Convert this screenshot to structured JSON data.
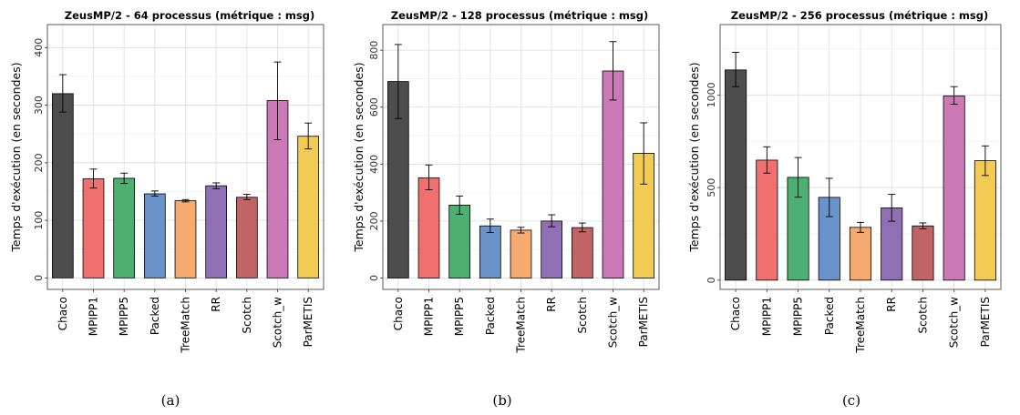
{
  "chart_data": [
    {
      "type": "bar",
      "title": "ZeusMP/2 - 64 processus (métrique : msg)",
      "ylabel": "Temps d'exécution (en secondes)",
      "xlabel": "",
      "subcaption": "(a)",
      "categories": [
        "Chaco",
        "MPIPP1",
        "MPIPP5",
        "Packed",
        "TreeMatch",
        "RR",
        "Scotch",
        "Scotch_w",
        "ParMETIS"
      ],
      "values": [
        320,
        172,
        173,
        146,
        134,
        160,
        140,
        308,
        246
      ],
      "error_low": [
        288,
        156,
        164,
        142,
        132,
        155,
        136,
        240,
        224
      ],
      "error_high": [
        353,
        189,
        182,
        151,
        136,
        165,
        145,
        375,
        269
      ],
      "ylim": [
        -20,
        440
      ],
      "yticks": [
        0,
        100,
        200,
        300,
        400
      ],
      "grid": true
    },
    {
      "type": "bar",
      "title": "ZeusMP/2 - 128 processus (métrique : msg)",
      "ylabel": "Temps d'exécution (en secondes)",
      "xlabel": "",
      "subcaption": "(b)",
      "categories": [
        "Chaco",
        "MPIPP1",
        "MPIPP5",
        "Packed",
        "TreeMatch",
        "RR",
        "Scotch",
        "Scotch_w",
        "ParMETIS"
      ],
      "values": [
        690,
        352,
        256,
        183,
        168,
        200,
        177,
        727,
        438
      ],
      "error_low": [
        560,
        310,
        224,
        160,
        158,
        180,
        162,
        625,
        330
      ],
      "error_high": [
        820,
        397,
        288,
        207,
        178,
        222,
        193,
        830,
        545
      ],
      "ylim": [
        -40,
        890
      ],
      "yticks": [
        0,
        200,
        400,
        600,
        800
      ],
      "grid": true
    },
    {
      "type": "bar",
      "title": "ZeusMP/2 - 256 processus (métrique : msg)",
      "ylabel": "Temps d'exécution (en secondes)",
      "xlabel": "",
      "subcaption": "(c)",
      "categories": [
        "Chaco",
        "MPIPP1",
        "MPIPP5",
        "Packed",
        "TreeMatch",
        "RR",
        "Scotch",
        "Scotch_w",
        "ParMETIS"
      ],
      "values": [
        1135,
        648,
        555,
        447,
        285,
        390,
        293,
        995,
        645
      ],
      "error_low": [
        1045,
        578,
        448,
        343,
        258,
        318,
        277,
        950,
        565
      ],
      "error_high": [
        1230,
        720,
        662,
        550,
        312,
        463,
        309,
        1045,
        725
      ],
      "ylim": [
        -50,
        1380
      ],
      "yticks": [
        0,
        500,
        1000
      ],
      "grid": true
    }
  ],
  "colors": {
    "Chaco": "#4d4d4d",
    "MPIPP1": "#f07070",
    "MPIPP5": "#4daf72",
    "Packed": "#6a93cb",
    "TreeMatch": "#f5aa70",
    "RR": "#9070b5",
    "Scotch": "#c06468",
    "Scotch_w": "#cc79b8",
    "ParMETIS": "#f2cb55"
  }
}
